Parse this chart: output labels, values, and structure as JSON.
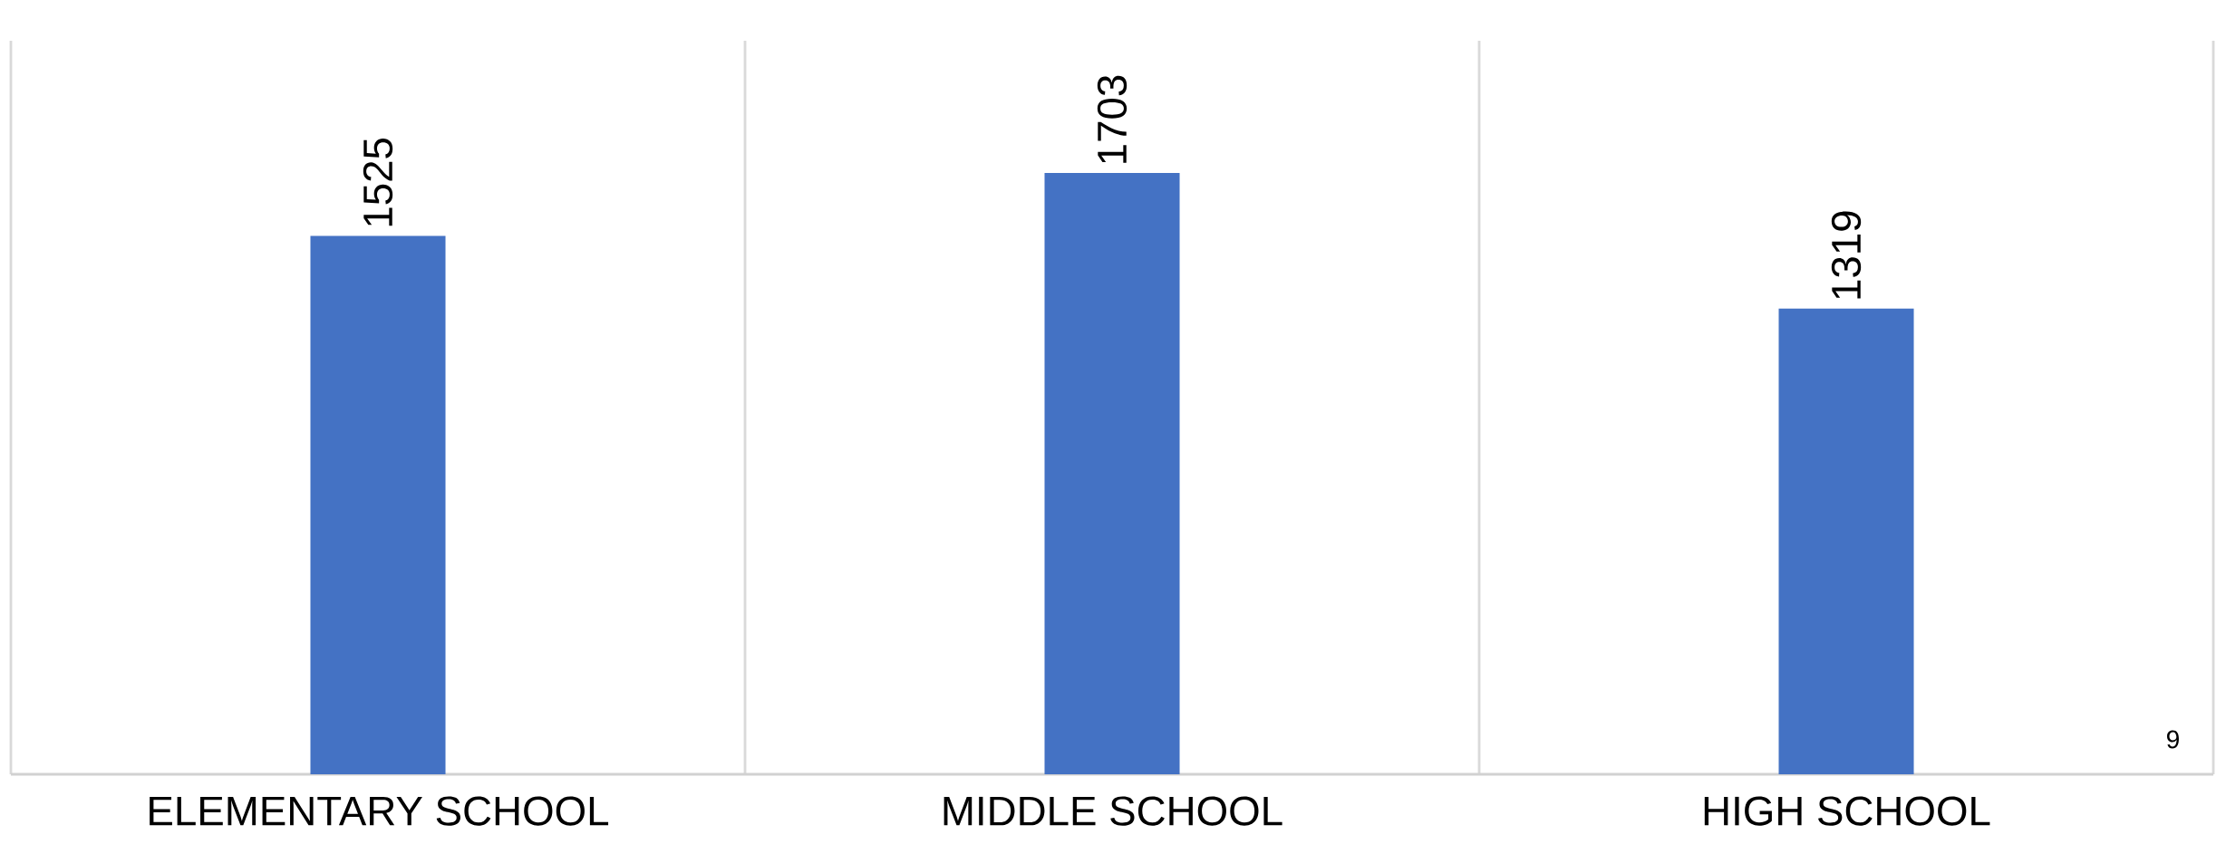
{
  "chart_data": {
    "type": "bar",
    "categories": [
      "ELEMENTARY SCHOOL",
      "MIDDLE SCHOOL",
      "HIGH SCHOOL"
    ],
    "values": [
      1525,
      1703,
      1319
    ],
    "color": "#4472c4",
    "data_labels": true,
    "grid": "x",
    "tick_labels": "x",
    "annotations": [
      "9"
    ]
  }
}
